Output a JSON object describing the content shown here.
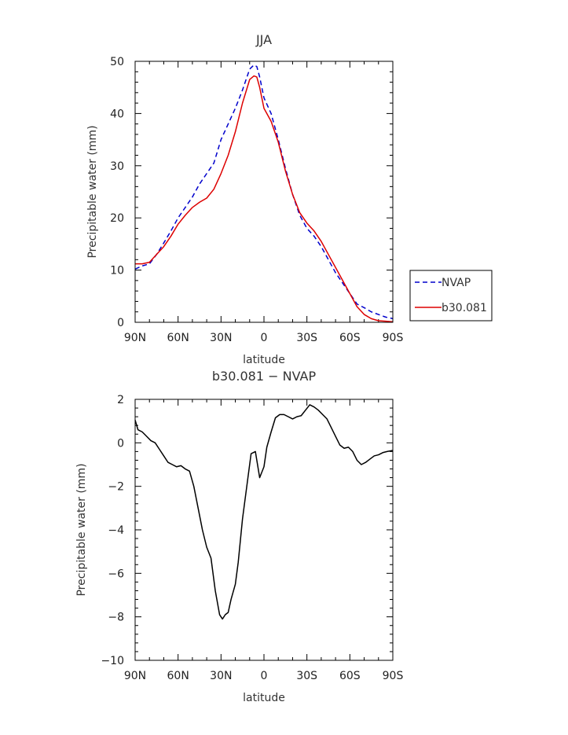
{
  "chart_data": [
    {
      "type": "line",
      "title": "JJA",
      "xlabel": "latitude",
      "ylabel": "Precipitable water (mm)",
      "xlim": [
        -90,
        90
      ],
      "ylim": [
        0,
        50
      ],
      "x_ticks": [
        -90,
        -60,
        -30,
        0,
        30,
        60,
        90
      ],
      "x_tick_labels": [
        "90N",
        "60N",
        "30N",
        "0",
        "30S",
        "60S",
        "90S"
      ],
      "y_ticks": [
        0,
        10,
        20,
        30,
        40,
        50
      ],
      "y_tick_labels": [
        "0",
        "10",
        "20",
        "30",
        "40",
        "50"
      ],
      "legend": {
        "placement": "right"
      },
      "series": [
        {
          "name": "NVAP",
          "color": "#0000cc",
          "style": "dashed",
          "x": [
            -90,
            -85,
            -80,
            -75,
            -70,
            -65,
            -60,
            -55,
            -50,
            -45,
            -40,
            -35,
            -30,
            -25,
            -20,
            -15,
            -10,
            -7,
            -5,
            -3,
            0,
            5,
            10,
            15,
            20,
            25,
            30,
            35,
            40,
            45,
            50,
            55,
            60,
            65,
            70,
            75,
            80,
            85,
            90
          ],
          "values": [
            10.2,
            10.8,
            11.2,
            13.0,
            15.2,
            17.5,
            20.0,
            22.0,
            24.0,
            26.5,
            28.5,
            30.5,
            35.0,
            38.0,
            41.0,
            44.5,
            48.5,
            49.3,
            49.0,
            47.0,
            43.0,
            40.0,
            35.0,
            29.5,
            24.5,
            20.5,
            18.0,
            16.5,
            14.5,
            12.0,
            9.5,
            7.5,
            5.5,
            3.5,
            2.8,
            2.0,
            1.5,
            1.0,
            0.7
          ]
        },
        {
          "name": "b30.081",
          "color": "#dd0000",
          "style": "solid",
          "x": [
            -90,
            -85,
            -80,
            -75,
            -70,
            -65,
            -60,
            -55,
            -50,
            -45,
            -40,
            -35,
            -30,
            -25,
            -20,
            -15,
            -10,
            -7,
            -5,
            -3,
            0,
            5,
            10,
            15,
            20,
            25,
            30,
            35,
            40,
            45,
            50,
            55,
            60,
            65,
            70,
            75,
            80,
            85,
            90
          ],
          "values": [
            11.2,
            11.2,
            11.5,
            13.0,
            14.5,
            16.5,
            18.8,
            20.5,
            22.0,
            23.0,
            23.8,
            25.5,
            28.5,
            32.0,
            36.5,
            42.0,
            46.5,
            47.2,
            47.0,
            45.0,
            41.0,
            38.5,
            34.5,
            29.0,
            24.5,
            21.0,
            19.0,
            17.5,
            15.5,
            13.0,
            10.5,
            8.0,
            5.5,
            3.0,
            1.5,
            0.7,
            0.3,
            0.2,
            0.1
          ]
        }
      ]
    },
    {
      "type": "line",
      "title": "b30.081 − NVAP",
      "xlabel": "latitude",
      "ylabel": "Precipitable water (mm)",
      "xlim": [
        -90,
        90
      ],
      "ylim": [
        -10,
        2
      ],
      "x_ticks": [
        -90,
        -60,
        -30,
        0,
        30,
        60,
        90
      ],
      "x_tick_labels": [
        "90N",
        "60N",
        "30N",
        "0",
        "30S",
        "60S",
        "90S"
      ],
      "y_ticks": [
        -10,
        -8,
        -6,
        -4,
        -2,
        0,
        2
      ],
      "y_tick_labels": [
        "−10",
        "−8",
        "−6",
        "−4",
        "−2",
        "0",
        "2"
      ],
      "series": [
        {
          "color": "#000000",
          "style": "solid",
          "x": [
            -90,
            -88,
            -85,
            -82,
            -79,
            -76,
            -73,
            -70,
            -67,
            -64,
            -61,
            -58,
            -55,
            -52,
            -49,
            -46,
            -43,
            -40,
            -37,
            -34,
            -31,
            -29,
            -27,
            -25,
            -23,
            -20,
            -18,
            -15,
            -12,
            -9,
            -6,
            -3,
            0,
            2,
            5,
            8,
            11,
            14,
            17,
            20,
            23,
            26,
            29,
            32,
            35,
            38,
            41,
            44,
            47,
            50,
            53,
            56,
            59,
            62,
            65,
            68,
            71,
            74,
            77,
            80,
            83,
            86,
            90
          ],
          "values": [
            1.05,
            0.6,
            0.5,
            0.3,
            0.1,
            0.0,
            -0.3,
            -0.6,
            -0.9,
            -1.0,
            -1.1,
            -1.05,
            -1.2,
            -1.3,
            -2.0,
            -3.0,
            -4.0,
            -4.8,
            -5.3,
            -6.8,
            -7.9,
            -8.1,
            -7.9,
            -7.8,
            -7.2,
            -6.5,
            -5.5,
            -3.5,
            -2.0,
            -0.5,
            -0.4,
            -1.6,
            -1.1,
            -0.2,
            0.5,
            1.15,
            1.3,
            1.3,
            1.2,
            1.1,
            1.2,
            1.25,
            1.5,
            1.75,
            1.65,
            1.5,
            1.3,
            1.1,
            0.7,
            0.3,
            -0.1,
            -0.25,
            -0.2,
            -0.4,
            -0.8,
            -1.0,
            -0.9,
            -0.75,
            -0.6,
            -0.55,
            -0.45,
            -0.4,
            -0.35
          ]
        }
      ]
    }
  ]
}
